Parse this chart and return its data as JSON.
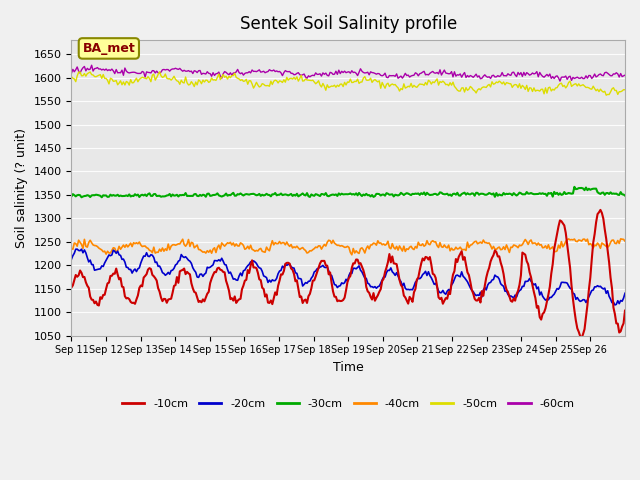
{
  "title": "Sentek Soil Salinity profile",
  "xlabel": "Time",
  "ylabel": "Soil salinity (? unit)",
  "annotation": "BA_met",
  "ylim": [
    1050,
    1680
  ],
  "yticks": [
    1050,
    1100,
    1150,
    1200,
    1250,
    1300,
    1350,
    1400,
    1450,
    1500,
    1550,
    1600,
    1650
  ],
  "x_labels": [
    "Sep 11",
    "Sep 12",
    "Sep 13",
    "Sep 14",
    "Sep 15",
    "Sep 16",
    "Sep 17",
    "Sep 18",
    "Sep 19",
    "Sep 20",
    "Sep 21",
    "Sep 22",
    "Sep 23",
    "Sep 24",
    "Sep 25",
    "Sep 26"
  ],
  "n_days": 16,
  "colors": {
    "-10cm": "#cc0000",
    "-20cm": "#0000cc",
    "-30cm": "#00aa00",
    "-40cm": "#ff8800",
    "-50cm": "#dddd00",
    "-60cm": "#aa00aa"
  },
  "legend_order": [
    "-10cm",
    "-20cm",
    "-30cm",
    "-40cm",
    "-50cm",
    "-60cm"
  ],
  "bg_color": "#e8e8e8",
  "fig_color": "#f0f0f0",
  "annotation_bg": "#ffff99",
  "annotation_border": "#888800"
}
